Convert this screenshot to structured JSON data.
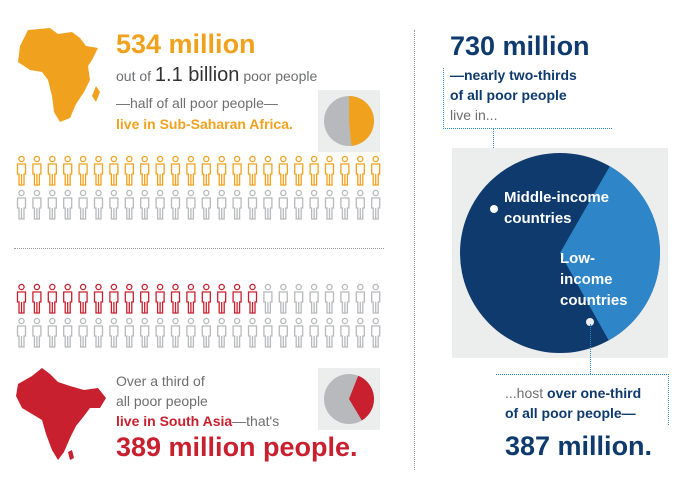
{
  "africa": {
    "headline": "534 million",
    "line1_pre": "out of",
    "line1_big": "1.1 billion",
    "line1_post": "poor people",
    "line2": "—half of all poor people—",
    "line3": "live in Sub-Saharan Africa.",
    "share_of_poor": 0.485
  },
  "southasia": {
    "line1": "Over a third of",
    "line2": "all poor people",
    "line3_emph": "live in South Asia",
    "line3_rest": "—that's",
    "headline": "389 million people.",
    "share_of_poor": 0.354
  },
  "middleincome": {
    "headline": "730 million",
    "line1": "—nearly two-thirds",
    "line2": "of all poor people",
    "line3": "live in...",
    "pie_label_middle": "Middle-income countries",
    "pie_label_low": "Low- income countries",
    "middle_share": 0.664,
    "foot_pre": "...host",
    "foot_emph": "over one-third",
    "foot_line2": "of all poor people—",
    "foot_headline": "387 million."
  },
  "icons": {
    "africa_highlight": 24,
    "southasia_highlight": 16,
    "per_row": 24
  },
  "colors": {
    "orange": "#F0A21E",
    "red": "#C8202F",
    "navy": "#0E3A6E",
    "blue": "#2E86C9",
    "grey": "#B7B9BC"
  }
}
